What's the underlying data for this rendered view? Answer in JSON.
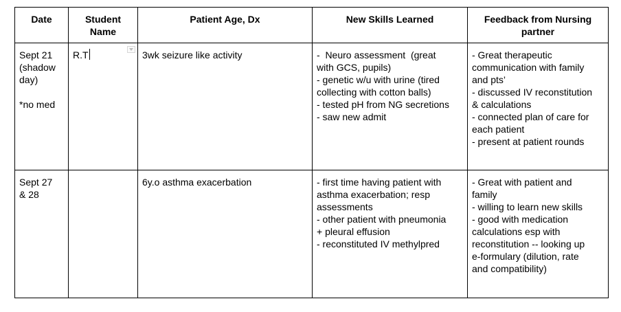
{
  "table": {
    "headers": {
      "date": "Date",
      "student_name": [
        "Student",
        "Name"
      ],
      "patient": "Patient Age, Dx",
      "skills": "New Skills Learned",
      "feedback": [
        "Feedback from Nursing",
        "partner"
      ]
    },
    "rows": [
      {
        "date": [
          "Sept 21",
          "(shadow",
          "day)"
        ],
        "date_note": "*no med",
        "student": "R.T",
        "patient": "3wk seizure like activity",
        "skills": [
          "-  Neuro assessment  (great",
          "with GCS, pupils)",
          "- genetic w/u with urine (tired",
          "collecting with cotton balls)",
          "- tested pH from NG secretions",
          "- saw new admit"
        ],
        "feedback": [
          "- Great therapeutic",
          "communication with family",
          "and pts’",
          "- discussed IV reconstitution",
          "& calculations",
          "- connected plan of care for",
          "each patient",
          "- present at patient rounds"
        ]
      },
      {
        "date": [
          "Sept 27",
          "& 28"
        ],
        "student": "",
        "patient": "6y.o asthma exacerbation",
        "skills": [
          "- first time having patient with",
          "asthma exacerbation; resp",
          "assessments",
          "- other patient with pneumonia",
          "+ pleural effusion",
          "- reconstituted IV methylpred"
        ],
        "feedback": [
          "- Great with patient and",
          "family",
          "- willing to learn new skills",
          "- good with medication",
          "calculations esp with",
          "reconstitution -- looking up",
          "e-formulary (dilution, rate",
          "and compatibility)"
        ]
      }
    ]
  }
}
